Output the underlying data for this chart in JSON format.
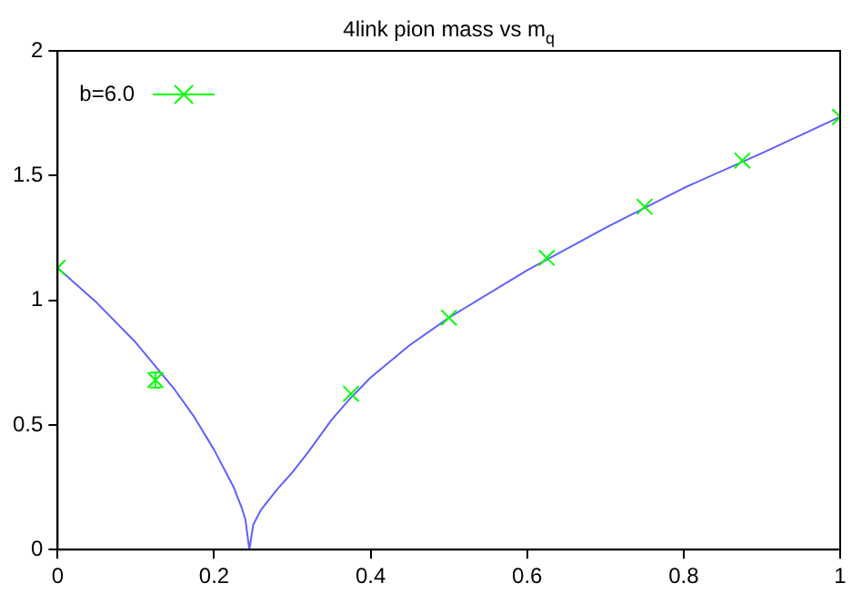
{
  "chart_data": {
    "type": "scatter",
    "title": "4link pion mass vs m$_{q}$",
    "xlim": [
      0,
      1
    ],
    "ylim": [
      0,
      2
    ],
    "xticks": [
      0,
      0.2,
      0.4,
      0.6,
      0.8,
      1
    ],
    "yticks": [
      0,
      0.5,
      1,
      1.5,
      2
    ],
    "grid": false,
    "legend": "top left",
    "marker": "cross",
    "series": [
      {
        "name": "b=6.0",
        "color": "#00ff00",
        "x": [
          0,
          0.125,
          0.375,
          0.5,
          0.625,
          0.75,
          0.875,
          1
        ],
        "values": [
          1.13,
          0.68,
          0.625,
          0.93,
          1.17,
          1.375,
          1.56,
          1.735
        ],
        "errors": [
          null,
          0.03,
          null,
          null,
          null,
          null,
          null,
          null
        ]
      },
      {
        "type": "line",
        "color": "#6060ff",
        "marker": "none",
        "x": [
          0,
          0.05,
          0.1,
          0.15,
          0.175,
          0.2,
          0.215,
          0.225,
          0.235,
          0.24,
          0.245,
          0.25,
          0.255,
          0.26,
          0.27,
          0.28,
          0.3,
          0.32,
          0.35,
          0.375,
          0.4,
          0.45,
          0.5,
          0.6,
          0.7,
          0.8,
          0.9,
          1
        ],
        "values": [
          1.13,
          0.99,
          0.83,
          0.64,
          0.53,
          0.4,
          0.31,
          0.25,
          0.17,
          0.12,
          0,
          0.1,
          0.13,
          0.16,
          0.2,
          0.24,
          0.31,
          0.39,
          0.52,
          0.61,
          0.69,
          0.82,
          0.93,
          1.12,
          1.29,
          1.45,
          1.59,
          1.735
        ]
      }
    ]
  }
}
